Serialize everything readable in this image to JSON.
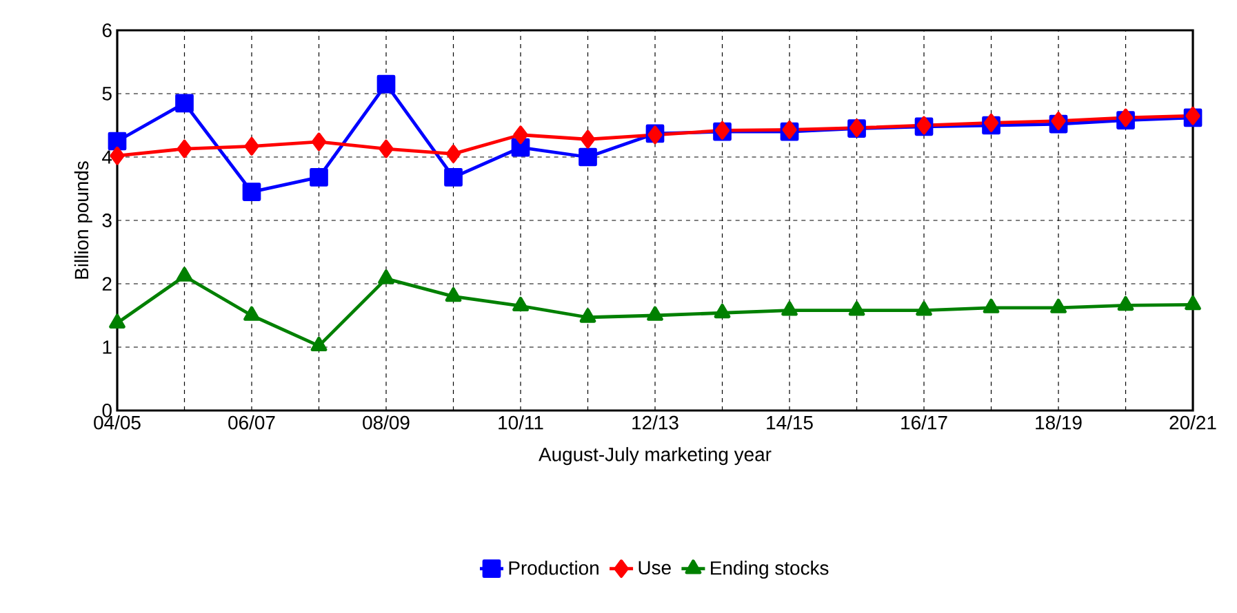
{
  "chart_data": {
    "type": "line",
    "xlabel": "August-July marketing year",
    "ylabel": "Billion pounds",
    "categories": [
      "04/05",
      null,
      "06/07",
      null,
      "08/09",
      null,
      "10/11",
      null,
      "12/13",
      null,
      "14/15",
      null,
      "16/17",
      null,
      "18/19",
      null,
      "20/21"
    ],
    "series": [
      {
        "name": "Production",
        "color": "#0000ff",
        "marker": "square",
        "values": [
          4.25,
          4.85,
          3.45,
          3.68,
          5.15,
          3.68,
          4.15,
          4.0,
          4.37,
          4.4,
          4.4,
          4.45,
          4.48,
          4.5,
          4.52,
          4.58,
          4.62
        ]
      },
      {
        "name": "Use",
        "color": "#ff0000",
        "marker": "diamond",
        "values": [
          4.02,
          4.13,
          4.17,
          4.24,
          4.13,
          4.05,
          4.35,
          4.28,
          4.35,
          4.42,
          4.43,
          4.46,
          4.5,
          4.54,
          4.57,
          4.62,
          4.65
        ]
      },
      {
        "name": "Ending stocks",
        "color": "#008000",
        "marker": "triangle",
        "values": [
          1.38,
          2.12,
          1.5,
          1.02,
          2.08,
          1.8,
          1.65,
          1.47,
          1.5,
          1.54,
          1.58,
          1.58,
          1.58,
          1.62,
          1.62,
          1.66,
          1.67
        ]
      }
    ],
    "ylim": [
      0,
      6
    ],
    "yticks": [
      0,
      1,
      2,
      3,
      4,
      5,
      6
    ],
    "grid": true,
    "legend": "bottom",
    "line_style": "solid"
  }
}
